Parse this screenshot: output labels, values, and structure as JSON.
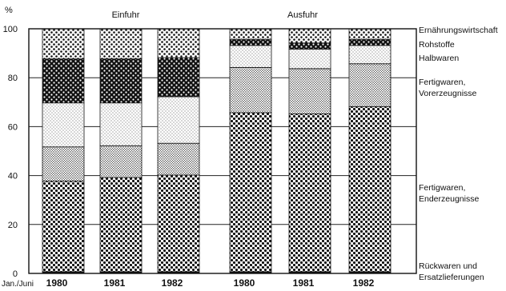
{
  "chart_data": {
    "type": "bar",
    "stacked": true,
    "unit_label": "%",
    "x_prefix_label": "Jan./Juni",
    "ylim": [
      0,
      100
    ],
    "yticks": [
      0,
      20,
      40,
      60,
      80,
      100
    ],
    "grid": true,
    "groups": [
      {
        "label": "Einfuhr",
        "categories": [
          "1980",
          "1981",
          "1982"
        ]
      },
      {
        "label": "Ausfuhr",
        "categories": [
          "1980",
          "1981",
          "1982"
        ]
      }
    ],
    "categories": [
      "1980",
      "1981",
      "1982",
      "1980",
      "1981",
      "1982"
    ],
    "series": [
      {
        "name": "Rückwaren und Ersatzlieferungen",
        "label_lines": [
          "Rückwaren und",
          "Ersatzlieferungen"
        ],
        "values": [
          0.7,
          0.7,
          0.7,
          0.7,
          0.7,
          0.7
        ]
      },
      {
        "name": "Fertigwaren, Enderzeugnisse",
        "label_lines": [
          "Fertigwaren,",
          "Enderzeugnisse"
        ],
        "values": [
          37,
          38.5,
          39.5,
          65,
          64.5,
          67.5
        ]
      },
      {
        "name": "Fertigwaren, Vorerzeugnisse",
        "label_lines": [
          "Fertigwaren,",
          "Vorerzeugnisse"
        ],
        "values": [
          14,
          13,
          13,
          18.5,
          18.5,
          17.5
        ]
      },
      {
        "name": "Halbwaren",
        "label_lines": [
          "Halbwaren"
        ],
        "values": [
          18,
          17.5,
          19,
          9,
          8,
          7.5
        ]
      },
      {
        "name": "Rohstoffe",
        "label_lines": [
          "Rohstoffe"
        ],
        "values": [
          18,
          18,
          16,
          2.5,
          2.5,
          2.5
        ]
      },
      {
        "name": "Ernährungswirtschaft",
        "label_lines": [
          "Ernährungswirtschaft"
        ],
        "values": [
          12.3,
          12.3,
          11.8,
          4.3,
          5.8,
          4.3
        ]
      }
    ]
  }
}
